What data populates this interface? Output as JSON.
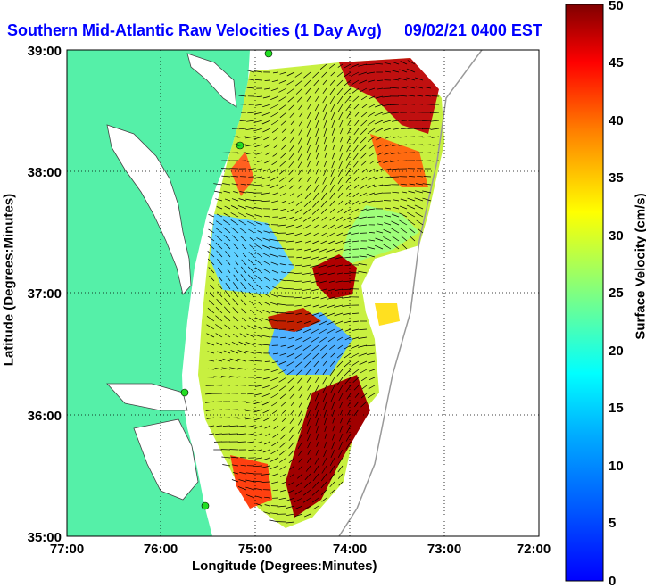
{
  "title": "Southern Mid-Atlantic Raw Velocities (1 Day Avg) 2009/02/21 0400 EST",
  "xlabel": "Longitude (Degrees:Minutes)",
  "ylabel": "Latitude (Degrees:Minutes)",
  "x_ticks": [
    "77:00",
    "76:00",
    "75:00",
    "74:00",
    "73:00",
    "72:00"
  ],
  "y_ticks": [
    "39:00",
    "38:00",
    "37:00",
    "36:00",
    "35:00"
  ],
  "colorbar": {
    "label": "Surface Velocity (cm/s)",
    "ticks": [
      "0",
      "5",
      "10",
      "15",
      "20",
      "25",
      "30",
      "35",
      "40",
      "45",
      "50"
    ],
    "min": 0,
    "max": 50
  },
  "colors": {
    "land": "#55f0a8",
    "ocean": "#ffffff",
    "station": "#22dd22",
    "title": "#0000ff"
  }
}
